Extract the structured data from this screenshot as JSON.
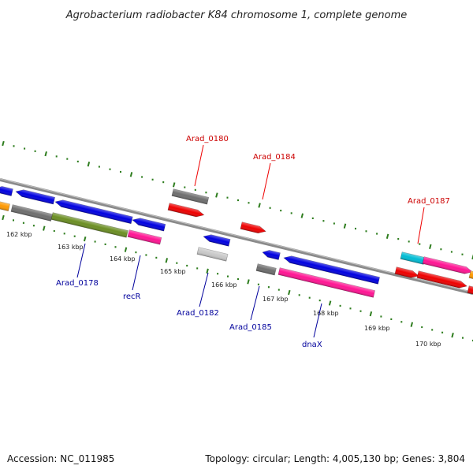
{
  "title": "Agrobacterium radiobacter K84 chromosome 1, complete genome",
  "footer": {
    "accession": "Accession: NC_011985",
    "topology": "Topology: circular; Length: 4,005,130 bp; Genes: 3,804"
  },
  "ticks": [
    "162 kbp",
    "163 kbp",
    "164 kbp",
    "165 kbp",
    "166 kbp",
    "167 kbp",
    "168 kbp",
    "169 kbp",
    "170 kbp"
  ],
  "labels_top": [
    "Arad_0180",
    "Arad_0184",
    "Arad_0187"
  ],
  "labels_bottom": [
    "Arad_0178",
    "recR",
    "Arad_0182",
    "Arad_0185",
    "dnaX"
  ],
  "colors": {
    "blue": "#0000e0",
    "gray": "#6e6e6e",
    "light_gray": "#c8c8c8",
    "olive": "#6b8e23",
    "pink": "#ff1493",
    "red": "#ee0000",
    "orange": "#ff9900",
    "cyan": "#00bcd4",
    "tick_green": "#2e7d1e",
    "backbone": "#8a8a8a"
  }
}
